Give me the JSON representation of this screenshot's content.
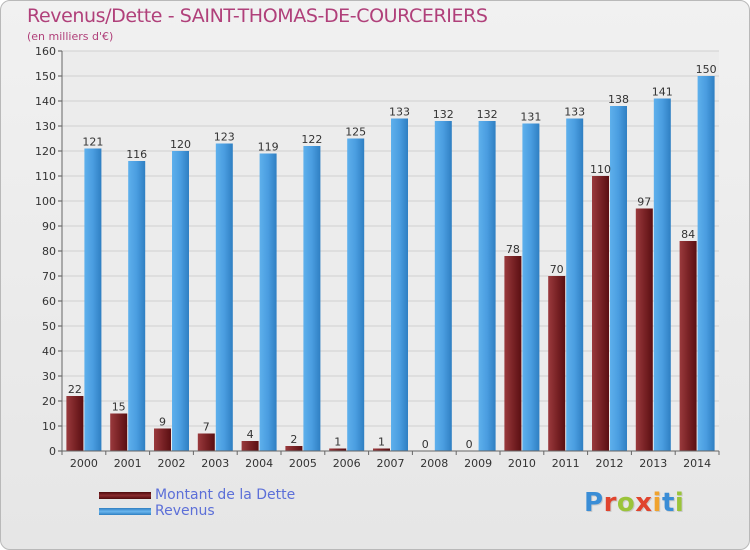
{
  "title": "Revenus/Dette - SAINT-THOMAS-DE-COURCERIERS",
  "subtitle": "(en milliers d'€)",
  "legend": {
    "debt_label": "Montant de la Dette",
    "revenue_label": "Revenus"
  },
  "logo": {
    "text": "Proxiti",
    "letters": [
      "P",
      "r",
      "o",
      "x",
      "i",
      "t",
      "i"
    ],
    "letter_colors": [
      "#3a8dd6",
      "#e0442e",
      "#9bc43a",
      "#e0442e",
      "#f0a32e",
      "#3a8dd6",
      "#9bc43a"
    ]
  },
  "colors": {
    "debt": "#6e1a1d",
    "debt_light": "#9a3a3d",
    "revenue": "#3b8fd3",
    "revenue_light": "#5aaae6",
    "title": "#b0407a",
    "legend_text": "#5c6fd8"
  },
  "chart_data": {
    "type": "bar",
    "categories": [
      "2000",
      "2001",
      "2002",
      "2003",
      "2004",
      "2005",
      "2006",
      "2007",
      "2008",
      "2009",
      "2010",
      "2011",
      "2012",
      "2013",
      "2014"
    ],
    "series": [
      {
        "name": "Montant de la Dette",
        "values": [
          22,
          15,
          9,
          7,
          4,
          2,
          1,
          1,
          0,
          0,
          78,
          70,
          110,
          97,
          84
        ]
      },
      {
        "name": "Revenus",
        "values": [
          121,
          116,
          120,
          123,
          119,
          122,
          125,
          133,
          132,
          132,
          131,
          133,
          138,
          141,
          150
        ]
      }
    ],
    "yticks": [
      "0",
      "10",
      "20",
      "30",
      "40",
      "50",
      "60",
      "70",
      "80",
      "90",
      "100",
      "110",
      "120",
      "130",
      "140",
      "150",
      "160"
    ],
    "ylim": [
      0,
      160
    ],
    "grid": true,
    "legend_position": "bottom-left"
  }
}
